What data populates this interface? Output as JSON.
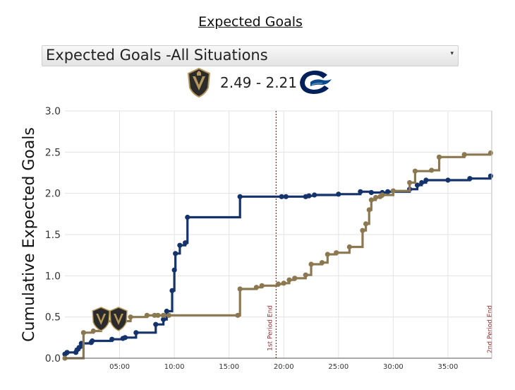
{
  "title": "Expected Goals",
  "selector": {
    "value": "Expected Goals -All Situations",
    "caret": "▾"
  },
  "score": {
    "text": "2.49 - 2.21",
    "home_logo_icon": "golden-knights-logo-icon",
    "away_logo_icon": "canucks-logo-icon"
  },
  "colors": {
    "home": "#8c7850",
    "away": "#15336b",
    "period_line": "#8b2a2a",
    "grid": "#e3e3e3"
  },
  "chart_data": {
    "type": "line",
    "step": true,
    "ylabel": "Cumulative Expected Goals",
    "xlabel": "",
    "ylim": [
      0,
      3
    ],
    "xlim": [
      0,
      39
    ],
    "y_ticks": [
      "0.0",
      "0.5",
      "1.0",
      "1.5",
      "2.0",
      "2.5",
      "3.0"
    ],
    "x_ticks": [
      {
        "label": "05:00",
        "value": 5
      },
      {
        "label": "10:00",
        "value": 10
      },
      {
        "label": "15:00",
        "value": 15
      },
      {
        "label": "20:00",
        "value": 20
      },
      {
        "label": "25:00",
        "value": 25
      },
      {
        "label": "30:00",
        "value": 30
      },
      {
        "label": "35:00",
        "value": 35
      }
    ],
    "grid": true,
    "annotations": [
      {
        "label": "1st Period End",
        "x": 19.3,
        "line": true
      },
      {
        "label": "2nd Period End",
        "x": 39.0,
        "line": false
      }
    ],
    "goal_markers": [
      {
        "x": 3.3,
        "icon": "golden-knights-logo-icon"
      },
      {
        "x": 4.9,
        "icon": "golden-knights-logo-icon"
      }
    ],
    "series": [
      {
        "key": "away",
        "x": [
          0.0,
          0.2,
          1.0,
          1.1,
          1.3,
          1.5,
          2.4,
          2.5,
          4.3,
          5.3,
          5.5,
          6.5,
          8.3,
          9.0,
          9.3,
          9.8,
          10.0,
          10.1,
          10.5,
          11.0,
          11.2,
          16.0,
          19.8,
          20.2,
          22.0,
          22.3,
          22.8,
          25.0,
          27.0,
          28.0,
          29.0,
          29.5,
          31.5,
          32.2,
          32.6,
          33.0,
          35.0,
          37.0,
          38.9
        ],
        "y": [
          0.05,
          0.07,
          0.07,
          0.1,
          0.13,
          0.18,
          0.19,
          0.21,
          0.23,
          0.24,
          0.25,
          0.31,
          0.41,
          0.47,
          0.57,
          0.82,
          1.07,
          1.27,
          1.37,
          1.4,
          1.71,
          1.96,
          1.96,
          1.96,
          1.96,
          1.97,
          1.98,
          1.99,
          2.02,
          2.01,
          2.01,
          2.02,
          2.05,
          2.1,
          2.13,
          2.16,
          2.16,
          2.18,
          2.21
        ]
      },
      {
        "key": "home",
        "x": [
          0.0,
          1.7,
          2.6,
          3.3,
          4.9,
          6.0,
          7.5,
          8.2,
          8.5,
          9.0,
          9.5,
          15.8,
          16.0,
          17.5,
          18.0,
          19.5,
          20.0,
          20.5,
          21.0,
          22.0,
          22.5,
          23.5,
          24.0,
          24.8,
          26.0,
          27.2,
          27.5,
          27.8,
          28.0,
          28.4,
          28.8,
          29.0,
          30.0,
          31.5,
          32.0,
          33.5,
          34.2,
          36.5,
          38.9
        ],
        "y": [
          0.0,
          0.31,
          0.33,
          0.45,
          0.45,
          0.5,
          0.52,
          0.52,
          0.52,
          0.52,
          0.52,
          0.52,
          0.84,
          0.86,
          0.88,
          0.9,
          0.91,
          0.95,
          0.97,
          1.01,
          1.14,
          1.16,
          1.26,
          1.28,
          1.35,
          1.55,
          1.63,
          1.8,
          1.92,
          1.95,
          1.96,
          1.98,
          2.03,
          2.13,
          2.27,
          2.28,
          2.44,
          2.47,
          2.49
        ]
      }
    ]
  }
}
